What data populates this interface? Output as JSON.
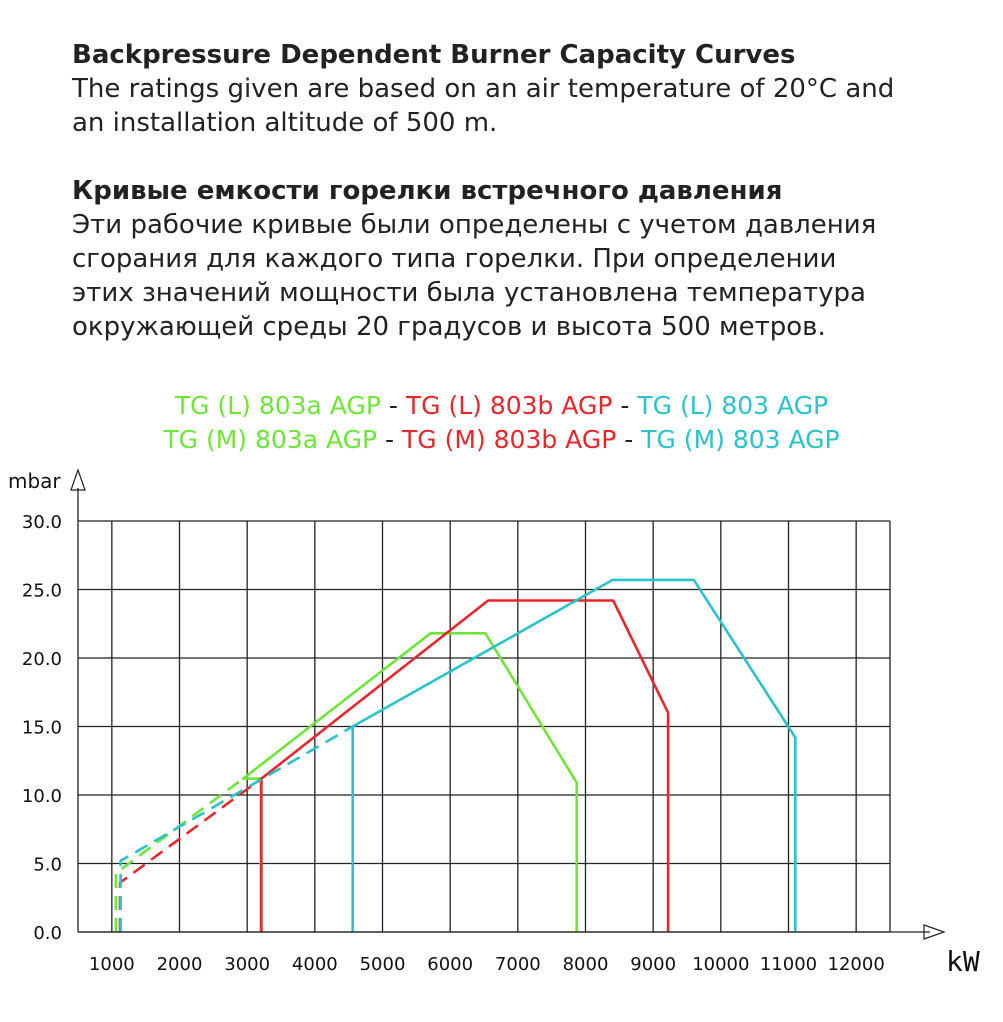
{
  "intro": {
    "en_heading": "Backpressure Dependent Burner Capacity Curves",
    "en_lines": [
      "The ratings given are based on an air temperature of 20°C and",
      "an installation altitude of 500 m."
    ],
    "ru_heading": "Кривые емкости горелки встречного давления",
    "ru_lines": [
      "Эти рабочие кривые были определены с учетом давления",
      "сгорания для каждого типа горелки. При определении",
      "этих значений мощности была установлена температура",
      "окружающей среды 20 градусов и высота 500 метров."
    ]
  },
  "legend": {
    "separator": " - ",
    "row1": [
      {
        "label": "TG (L) 803a AGP",
        "color": "#6ee638"
      },
      {
        "label": "TG (L) 803b AGP",
        "color": "#e8262b"
      },
      {
        "label": "TG (L) 803 AGP",
        "color": "#29c3cc"
      }
    ],
    "row2": [
      {
        "label": "TG (M) 803a AGP",
        "color": "#6ee638"
      },
      {
        "label": "TG (M) 803b AGP",
        "color": "#e8262b"
      },
      {
        "label": "TG (M) 803 AGP",
        "color": "#29c3cc"
      }
    ]
  },
  "chart_data": {
    "type": "line",
    "xlabel": "kW",
    "ylabel": "mbar",
    "xlim": [
      500,
      12500
    ],
    "ylim": [
      0,
      30
    ],
    "x_ticks": [
      1000,
      2000,
      3000,
      4000,
      5000,
      6000,
      7000,
      8000,
      9000,
      10000,
      11000,
      12000
    ],
    "y_ticks": [
      0,
      5,
      10,
      15,
      20,
      25,
      30
    ],
    "y_tick_labels": [
      "0.0",
      "5.0",
      "10.0",
      "15.0",
      "20.0",
      "25.0",
      "30.0"
    ],
    "grid": true,
    "series": [
      {
        "name": "TG (L) 803a AGP / TG (M) 803a AGP",
        "color": "#6ee638",
        "dashed": [
          [
            1060,
            0
          ],
          [
            1060,
            4.3
          ],
          [
            2940,
            11.2
          ]
        ],
        "solid": [
          [
            3200,
            0
          ],
          [
            3200,
            11.2
          ],
          [
            2940,
            11.2
          ],
          [
            5710,
            21.8
          ],
          [
            6520,
            21.8
          ],
          [
            7870,
            10.9
          ],
          [
            7870,
            0
          ]
        ]
      },
      {
        "name": "TG (L) 803b AGP / TG (M) 803b AGP",
        "color": "#e8262b",
        "dashed": [
          [
            1120,
            0
          ],
          [
            1120,
            3.6
          ],
          [
            3210,
            11.2
          ]
        ],
        "solid": [
          [
            3210,
            0
          ],
          [
            3210,
            11.2
          ],
          [
            6560,
            24.2
          ],
          [
            8410,
            24.2
          ],
          [
            9220,
            16.0
          ],
          [
            9220,
            0
          ]
        ]
      },
      {
        "name": "TG (L) 803 AGP / TG (M) 803 AGP",
        "color": "#29c3cc",
        "dashed": [
          [
            1130,
            0
          ],
          [
            1130,
            5.2
          ],
          [
            4560,
            15.0
          ]
        ],
        "solid": [
          [
            4560,
            0
          ],
          [
            4560,
            15.0
          ],
          [
            8400,
            25.7
          ],
          [
            9600,
            25.7
          ],
          [
            11100,
            14.2
          ],
          [
            11100,
            0
          ]
        ]
      }
    ]
  }
}
